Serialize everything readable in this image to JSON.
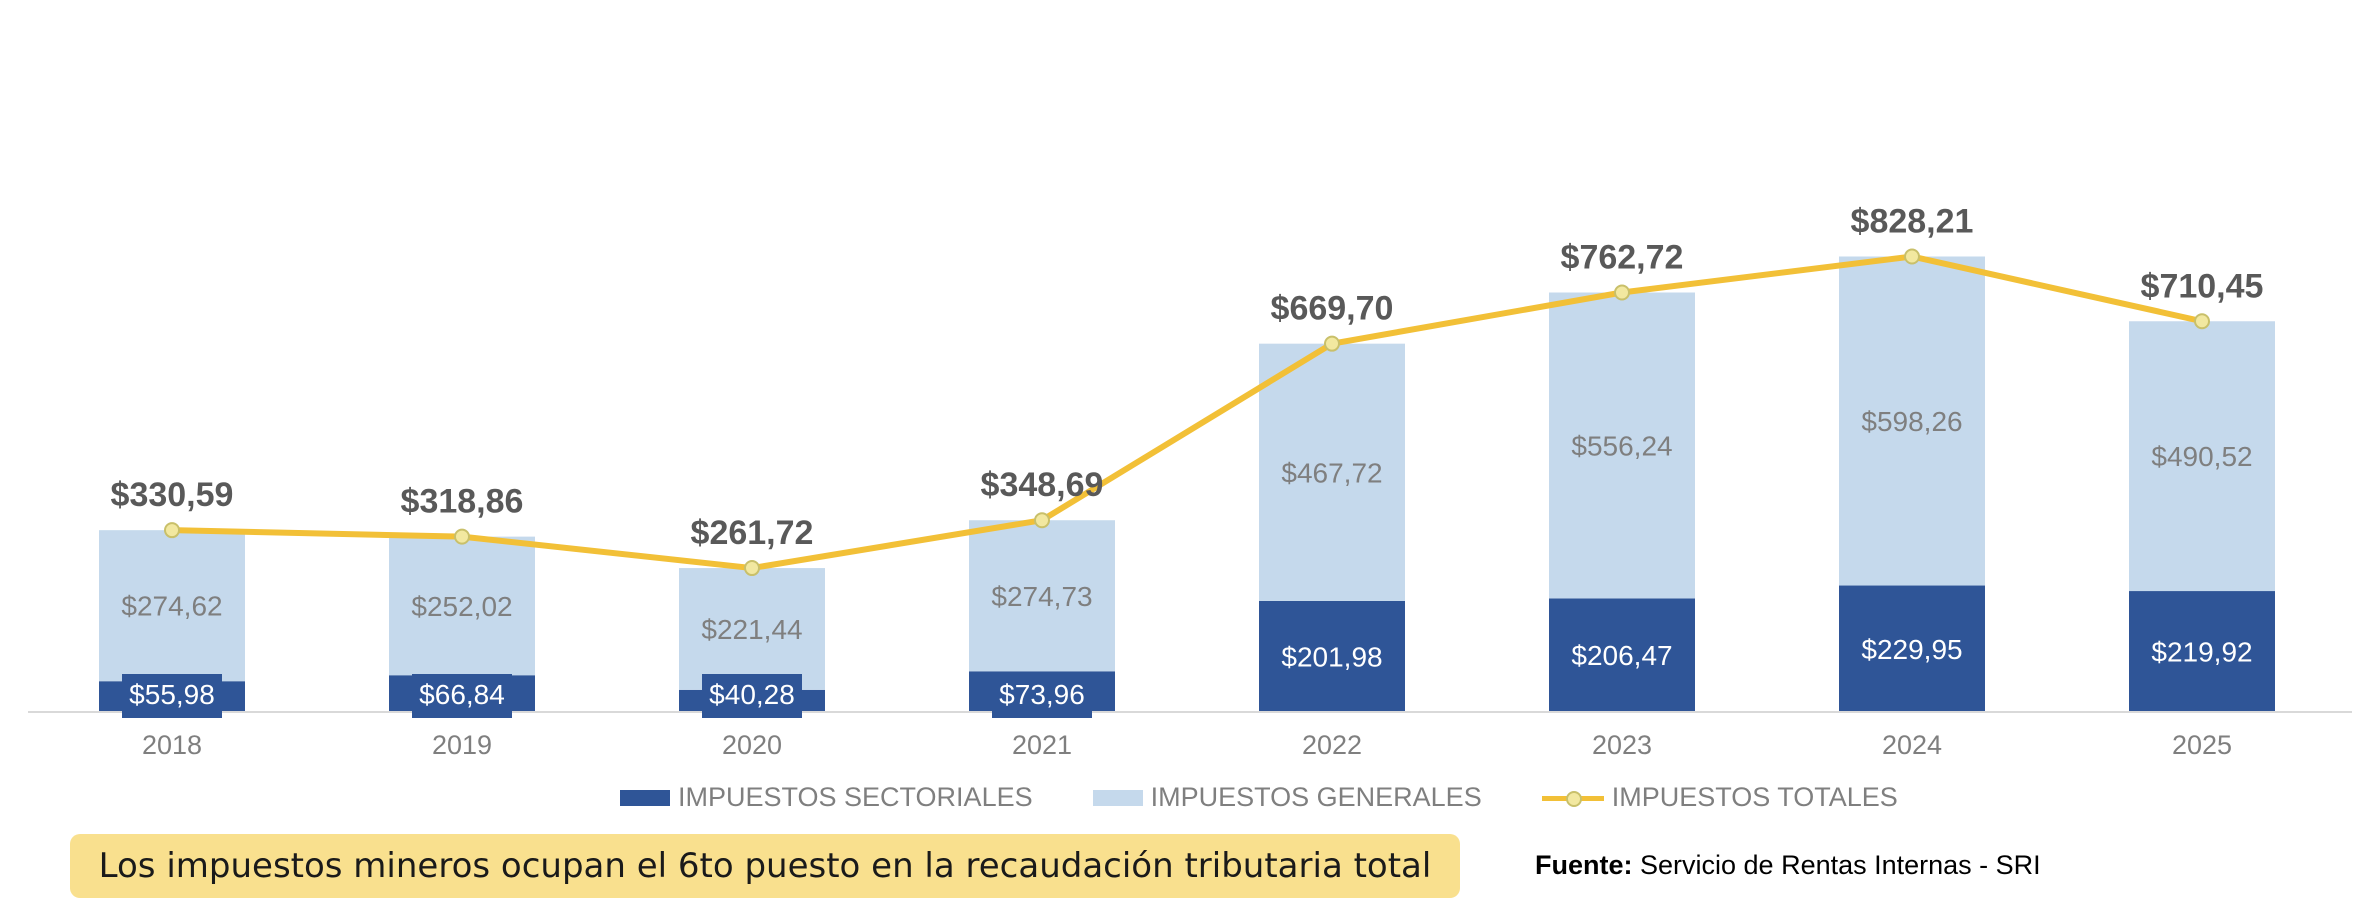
{
  "chart_data": {
    "type": "bar",
    "stacked": true,
    "categories": [
      "2018",
      "2019",
      "2020",
      "2021",
      "2022",
      "2023",
      "2024",
      "2025"
    ],
    "series": [
      {
        "name": "IMPUESTOS SECTORIALES",
        "type": "bar",
        "color": "#2f5597",
        "values": [
          55.98,
          66.84,
          40.28,
          73.96,
          201.98,
          206.47,
          229.95,
          219.92
        ],
        "labels": [
          "$55,98",
          "$66,84",
          "$40,28",
          "$73,96",
          "$201,98",
          "$206,47",
          "$229,95",
          "$219,92"
        ]
      },
      {
        "name": "IMPUESTOS GENERALES",
        "type": "bar",
        "color": "#c5d9ec",
        "values": [
          274.62,
          252.02,
          221.44,
          274.73,
          467.72,
          556.24,
          598.26,
          490.52
        ],
        "labels": [
          "$274,62",
          "$252,02",
          "$221,44",
          "$274,73",
          "$467,72",
          "$556,24",
          "$598,26",
          "$490,52"
        ]
      },
      {
        "name": "IMPUESTOS TOTALES",
        "type": "line",
        "color": "#f2c037",
        "values": [
          330.59,
          318.86,
          261.72,
          348.69,
          669.7,
          762.72,
          828.21,
          710.45
        ],
        "labels": [
          "$330,59",
          "$318,86",
          "$261,72",
          "$348,69",
          "$669,70",
          "$762,72",
          "$828,21",
          "$710,45"
        ]
      }
    ],
    "ylim": [
      0,
      1000
    ],
    "grid": false,
    "legend": "bottom"
  },
  "banner": {
    "text": "Los impuestos mineros ocupan el 6to puesto en la recaudación tributaria total",
    "color": "#f9e08e"
  },
  "source": {
    "label": "Fuente:",
    "text": " Servicio de Rentas Internas - SRI"
  }
}
